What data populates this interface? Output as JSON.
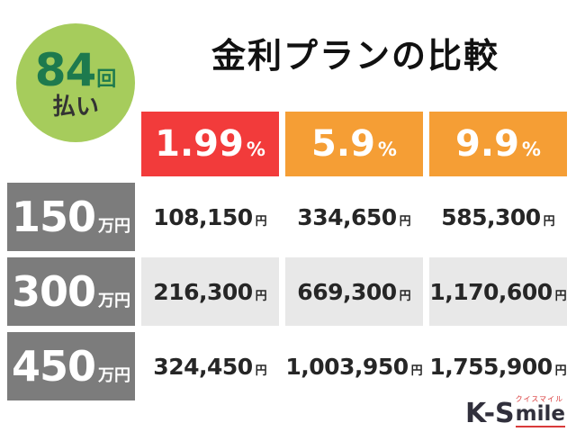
{
  "badge": {
    "number": "84",
    "unit": "回",
    "label": "払い"
  },
  "title": "金利プランの比較",
  "table": {
    "rate_headers": [
      {
        "rate": "1.99",
        "unit": "%"
      },
      {
        "rate": "5.9",
        "unit": "%"
      },
      {
        "rate": "9.9",
        "unit": "%"
      }
    ],
    "rows": [
      {
        "amount": "150",
        "amount_unit": "万円",
        "values": [
          {
            "value": "108,150",
            "unit": "円"
          },
          {
            "value": "334,650",
            "unit": "円"
          },
          {
            "value": "585,300",
            "unit": "円"
          }
        ]
      },
      {
        "amount": "300",
        "amount_unit": "万円",
        "values": [
          {
            "value": "216,300",
            "unit": "円"
          },
          {
            "value": "669,300",
            "unit": "円"
          },
          {
            "value": "1,170,600",
            "unit": "円"
          }
        ]
      },
      {
        "amount": "450",
        "amount_unit": "万円",
        "values": [
          {
            "value": "324,450",
            "unit": "円"
          },
          {
            "value": "1,003,950",
            "unit": "円"
          },
          {
            "value": "1,755,900",
            "unit": "円"
          }
        ]
      }
    ]
  },
  "logo": {
    "main": "K-S",
    "mile": "mile",
    "kana": "クイスマイル"
  },
  "colors": {
    "red": "#f23b3b",
    "orange": "#f59e35",
    "gray": "#7c7c7c",
    "shade": "#e8e8e8",
    "badge_green": "#a6cc5c",
    "badge_text_green": "#1d7a4e",
    "logo_red": "#d93a3a"
  },
  "chart_data": {
    "type": "table",
    "title": "金利プランの比較",
    "note": "84回払い",
    "columns": [
      "1.99%",
      "5.9%",
      "9.9%"
    ],
    "row_labels": [
      "150万円",
      "300万円",
      "450万円"
    ],
    "values": [
      [
        "108,150円",
        "334,650円",
        "585,300円"
      ],
      [
        "216,300円",
        "669,300円",
        "1,170,600円"
      ],
      [
        "324,450円",
        "1,003,950円",
        "1,755,900円"
      ]
    ]
  }
}
